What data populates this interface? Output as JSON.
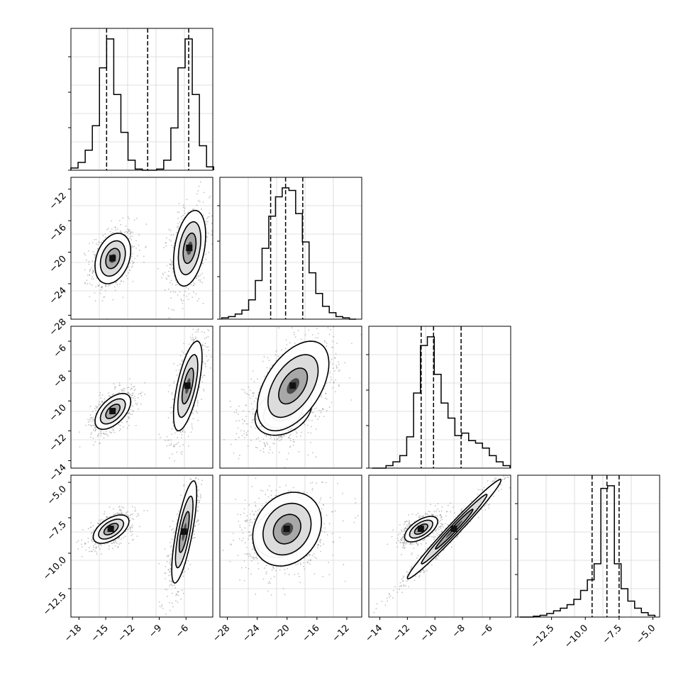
{
  "chart_data": [
    {
      "panel": "hist-1",
      "type": "histogram",
      "xlim": [
        -18.9,
        -3.0
      ],
      "bins": [
        [
          -18.5,
          2
        ],
        [
          -17.7,
          7
        ],
        [
          -16.9,
          18
        ],
        [
          -16.1,
          40
        ],
        [
          -15.3,
          92
        ],
        [
          -14.5,
          118
        ],
        [
          -13.7,
          68
        ],
        [
          -12.9,
          34
        ],
        [
          -12.1,
          9
        ],
        [
          -11.3,
          1
        ],
        [
          -10.5,
          0
        ],
        [
          -9.7,
          0
        ],
        [
          -8.9,
          1
        ],
        [
          -8.1,
          9
        ],
        [
          -7.3,
          38
        ],
        [
          -6.5,
          92
        ],
        [
          -5.7,
          118
        ],
        [
          -4.9,
          68
        ],
        [
          -4.1,
          22
        ],
        [
          -3.3,
          3
        ]
      ],
      "quantiles": [
        -14.9,
        -10.3,
        -5.7
      ],
      "xticks": [],
      "xtick_labels": []
    },
    {
      "panel": "scatter-2-1",
      "type": "scatter",
      "xlim": [
        -18.9,
        -3.0
      ],
      "ylim": [
        -28.5,
        -10.5
      ],
      "clusters": [
        {
          "cx": -14.2,
          "cy": -20.8,
          "sx": 1.0,
          "sy": 1.6,
          "rho": 0.3
        },
        {
          "cx": -5.6,
          "cy": -19.5,
          "sx": 0.9,
          "sy": 2.4,
          "rho": 0.35
        }
      ],
      "yticks": [
        -12,
        -16,
        -20,
        -24,
        -28
      ],
      "ytick_labels": [
        "−12",
        "−16",
        "−20",
        "−24",
        "−28"
      ]
    },
    {
      "panel": "hist-2",
      "type": "histogram",
      "xlim": [
        -29.0,
        -10.0
      ],
      "bins": [
        [
          -28.3,
          1
        ],
        [
          -27.4,
          2
        ],
        [
          -26.5,
          4
        ],
        [
          -25.6,
          7
        ],
        [
          -24.7,
          15
        ],
        [
          -23.8,
          30
        ],
        [
          -22.9,
          55
        ],
        [
          -22.0,
          80
        ],
        [
          -21.1,
          95
        ],
        [
          -20.2,
          102
        ],
        [
          -19.3,
          100
        ],
        [
          -18.4,
          82
        ],
        [
          -17.5,
          60
        ],
        [
          -16.6,
          36
        ],
        [
          -15.7,
          20
        ],
        [
          -14.8,
          10
        ],
        [
          -13.9,
          5
        ],
        [
          -13.0,
          2
        ],
        [
          -12.1,
          1
        ],
        [
          -11.2,
          0
        ]
      ],
      "quantiles": [
        -22.2,
        -20.2,
        -17.9
      ],
      "xticks": [],
      "xtick_labels": []
    },
    {
      "panel": "scatter-3-1",
      "type": "scatter",
      "xlim": [
        -18.9,
        -3.0
      ],
      "ylim": [
        -14.5,
        -5.0
      ],
      "clusters": [
        {
          "cx": -14.2,
          "cy": -10.7,
          "sx": 1.0,
          "sy": 0.6,
          "rho": 0.55
        },
        {
          "cx": -5.8,
          "cy": -9.0,
          "sx": 0.8,
          "sy": 1.5,
          "rho": 0.65
        }
      ],
      "yticks": [
        -6,
        -8,
        -10,
        -12,
        -14
      ],
      "ytick_labels": [
        "−6",
        "−8",
        "−10",
        "−12",
        "−14"
      ]
    },
    {
      "panel": "scatter-3-2",
      "type": "scatter",
      "xlim": [
        -29.0,
        -10.0
      ],
      "ylim": [
        -14.5,
        -5.0
      ],
      "clusters": [
        {
          "cx": -20.5,
          "cy": -10.7,
          "sx": 1.9,
          "sy": 0.8,
          "rho": 0.3
        },
        {
          "cx": -19.2,
          "cy": -9.0,
          "sx": 2.4,
          "sy": 1.5,
          "rho": 0.5
        }
      ],
      "yticks": [],
      "ytick_labels": []
    },
    {
      "panel": "hist-3",
      "type": "histogram",
      "xlim": [
        -14.8,
        -4.5
      ],
      "bins": [
        [
          -14.3,
          0
        ],
        [
          -13.8,
          0
        ],
        [
          -13.3,
          2
        ],
        [
          -12.8,
          5
        ],
        [
          -12.3,
          10
        ],
        [
          -11.8,
          25
        ],
        [
          -11.3,
          60
        ],
        [
          -10.8,
          98
        ],
        [
          -10.3,
          105
        ],
        [
          -9.8,
          75
        ],
        [
          -9.3,
          52
        ],
        [
          -8.8,
          40
        ],
        [
          -8.3,
          26
        ],
        [
          -7.8,
          28
        ],
        [
          -7.3,
          22
        ],
        [
          -6.8,
          20
        ],
        [
          -6.3,
          16
        ],
        [
          -5.8,
          10
        ],
        [
          -5.3,
          5
        ],
        [
          -4.8,
          2
        ]
      ],
      "quantiles": [
        -11.0,
        -10.1,
        -8.1
      ],
      "xticks": [],
      "xtick_labels": []
    },
    {
      "panel": "scatter-4-1",
      "type": "scatter",
      "xlim": [
        -18.9,
        -3.0
      ],
      "ylim": [
        -14.5,
        -4.5
      ],
      "clusters": [
        {
          "cx": -14.4,
          "cy": -8.3,
          "sx": 1.0,
          "sy": 0.5,
          "rho": 0.55
        },
        {
          "cx": -6.2,
          "cy": -8.5,
          "sx": 0.7,
          "sy": 1.8,
          "rho": 0.75
        }
      ],
      "yticks": [
        -5.0,
        -7.5,
        -10.0,
        -12.5
      ],
      "ytick_labels": [
        "−5.0",
        "−7.5",
        "−10.0",
        "−12.5"
      ],
      "xticks": [
        -18,
        -15,
        -12,
        -9,
        -6
      ],
      "xtick_labels": [
        "−18",
        "−15",
        "−12",
        "−9",
        "−6"
      ]
    },
    {
      "panel": "scatter-4-2",
      "type": "scatter",
      "xlim": [
        -29.0,
        -10.0
      ],
      "ylim": [
        -14.5,
        -4.5
      ],
      "clusters": [
        {
          "cx": -20.6,
          "cy": -8.5,
          "sx": 1.9,
          "sy": 0.9,
          "rho": 0.2
        },
        {
          "cx": -20.0,
          "cy": -8.3,
          "sx": 2.3,
          "sy": 1.3,
          "rho": 0.2
        }
      ],
      "xticks": [
        -28,
        -24,
        -20,
        -16,
        -12
      ],
      "xtick_labels": [
        "−28",
        "−24",
        "−20",
        "−16",
        "−12"
      ]
    },
    {
      "panel": "scatter-4-3",
      "type": "scatter",
      "xlim": [
        -14.8,
        -4.5
      ],
      "ylim": [
        -14.5,
        -4.5
      ],
      "clusters": [
        {
          "cx": -11.0,
          "cy": -8.3,
          "sx": 0.6,
          "sy": 0.45,
          "rho": 0.6
        },
        {
          "cx": -8.6,
          "cy": -8.3,
          "sx": 1.7,
          "sy": 1.75,
          "rho": 0.985
        }
      ],
      "xticks": [
        -14,
        -12,
        -10,
        -8,
        -6
      ],
      "xtick_labels": [
        "−14",
        "−12",
        "−10",
        "−8",
        "−6"
      ]
    },
    {
      "panel": "hist-4",
      "type": "histogram",
      "xlim": [
        -15.0,
        -4.5
      ],
      "bins": [
        [
          -14.6,
          0
        ],
        [
          -14.1,
          0
        ],
        [
          -13.6,
          1
        ],
        [
          -13.1,
          2
        ],
        [
          -12.6,
          4
        ],
        [
          -12.1,
          7
        ],
        [
          -11.6,
          10
        ],
        [
          -11.1,
          14
        ],
        [
          -10.6,
          20
        ],
        [
          -10.1,
          30
        ],
        [
          -9.6,
          42
        ],
        [
          -9.1,
          60
        ],
        [
          -8.6,
          145
        ],
        [
          -8.1,
          148
        ],
        [
          -7.6,
          60
        ],
        [
          -7.1,
          32
        ],
        [
          -6.6,
          18
        ],
        [
          -6.1,
          10
        ],
        [
          -5.6,
          5
        ],
        [
          -5.1,
          2
        ]
      ],
      "quantiles": [
        -9.5,
        -8.4,
        -7.5
      ],
      "xticks": [
        -12.5,
        -10.0,
        -7.5,
        -5.0
      ],
      "xtick_labels": [
        "−12.5",
        "−10.0",
        "−7.5",
        "−5.0"
      ]
    }
  ]
}
